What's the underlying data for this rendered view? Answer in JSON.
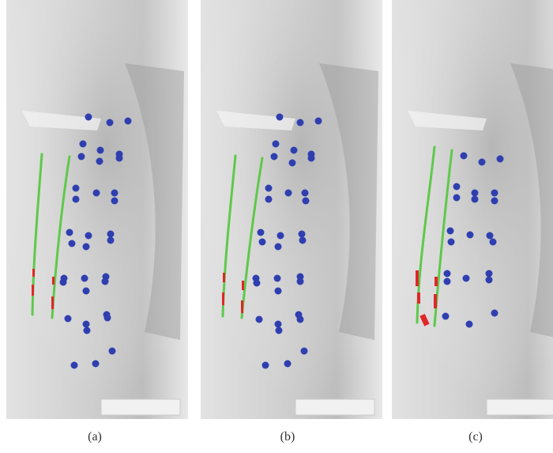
{
  "figure": {
    "panels": [
      {
        "id": "a",
        "caption": "(a)"
      },
      {
        "id": "b",
        "caption": "(b)"
      },
      {
        "id": "c",
        "caption": "(c)"
      }
    ]
  },
  "colors": {
    "landmark_points": "#2f3fb0",
    "contour_lines": "#5ec94a",
    "highlight_marks": "#e0262a",
    "xray_background": "#d7d7d7"
  }
}
